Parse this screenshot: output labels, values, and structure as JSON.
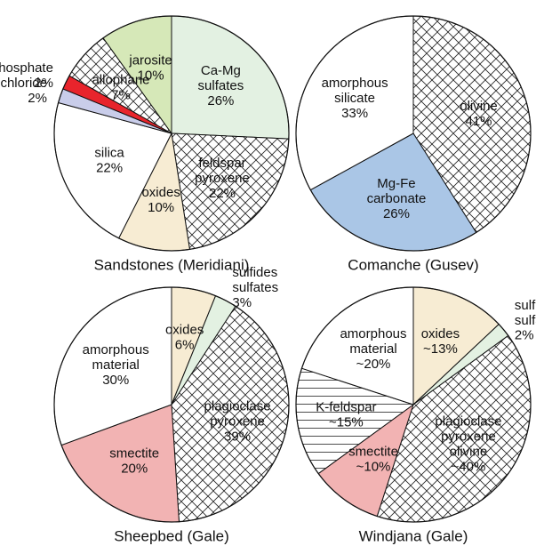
{
  "chart_data": [
    {
      "type": "pie",
      "title": "Sandstones (Meridiani)",
      "categories": [
        "Ca-Mg sulfates",
        "feldspar pyroxene",
        "oxides",
        "silica",
        "chloride",
        "phosphate",
        "allophane",
        "jarosite"
      ],
      "values": [
        26,
        22,
        10,
        22,
        2,
        2,
        7,
        10
      ],
      "value_labels": [
        "26%",
        "22%",
        "10%",
        "22%",
        "2%",
        "2%",
        "7%",
        "10%"
      ],
      "colors": [
        "#e3f1e2",
        "crosshatch",
        "#f7ecd3",
        "#ffffff",
        "#c9cdea",
        "#e8242c",
        "crosshatch",
        "#d6e8b8"
      ]
    },
    {
      "type": "pie",
      "title": "Comanche (Gusev)",
      "categories": [
        "olivine",
        "Mg-Fe carbonate",
        "amorphous silicate"
      ],
      "values": [
        41,
        26,
        33
      ],
      "value_labels": [
        "41%",
        "26%",
        "33%"
      ],
      "colors": [
        "crosshatch",
        "#aac6e6",
        "#ffffff"
      ]
    },
    {
      "type": "pie",
      "title": "Sheepbed (Gale)",
      "categories": [
        "oxides",
        "sulfides sulfates",
        "plagioclase pyroxene",
        "smectite",
        "amorphous material"
      ],
      "values": [
        6,
        3,
        39,
        20,
        30
      ],
      "value_labels": [
        "6%",
        "3%",
        "39%",
        "20%",
        "30%"
      ],
      "colors": [
        "#f7ecd3",
        "#e3f1e2",
        "crosshatch",
        "#f2b3b3",
        "#ffffff"
      ]
    },
    {
      "type": "pie",
      "title": "Windjana (Gale)",
      "categories": [
        "oxides",
        "sulfides sulfates",
        "plagioclase pyroxene olivine",
        "smectite",
        "K-feldspar",
        "amorphous material"
      ],
      "values": [
        13,
        2,
        40,
        10,
        15,
        20
      ],
      "value_labels": [
        "~13%",
        "2%",
        "~40%",
        "~10%",
        "~15%",
        "~20%"
      ],
      "colors": [
        "#f7ecd3",
        "#e3f1e2",
        "crosshatch",
        "#f2b3b3",
        "hlines",
        "#ffffff"
      ]
    }
  ]
}
